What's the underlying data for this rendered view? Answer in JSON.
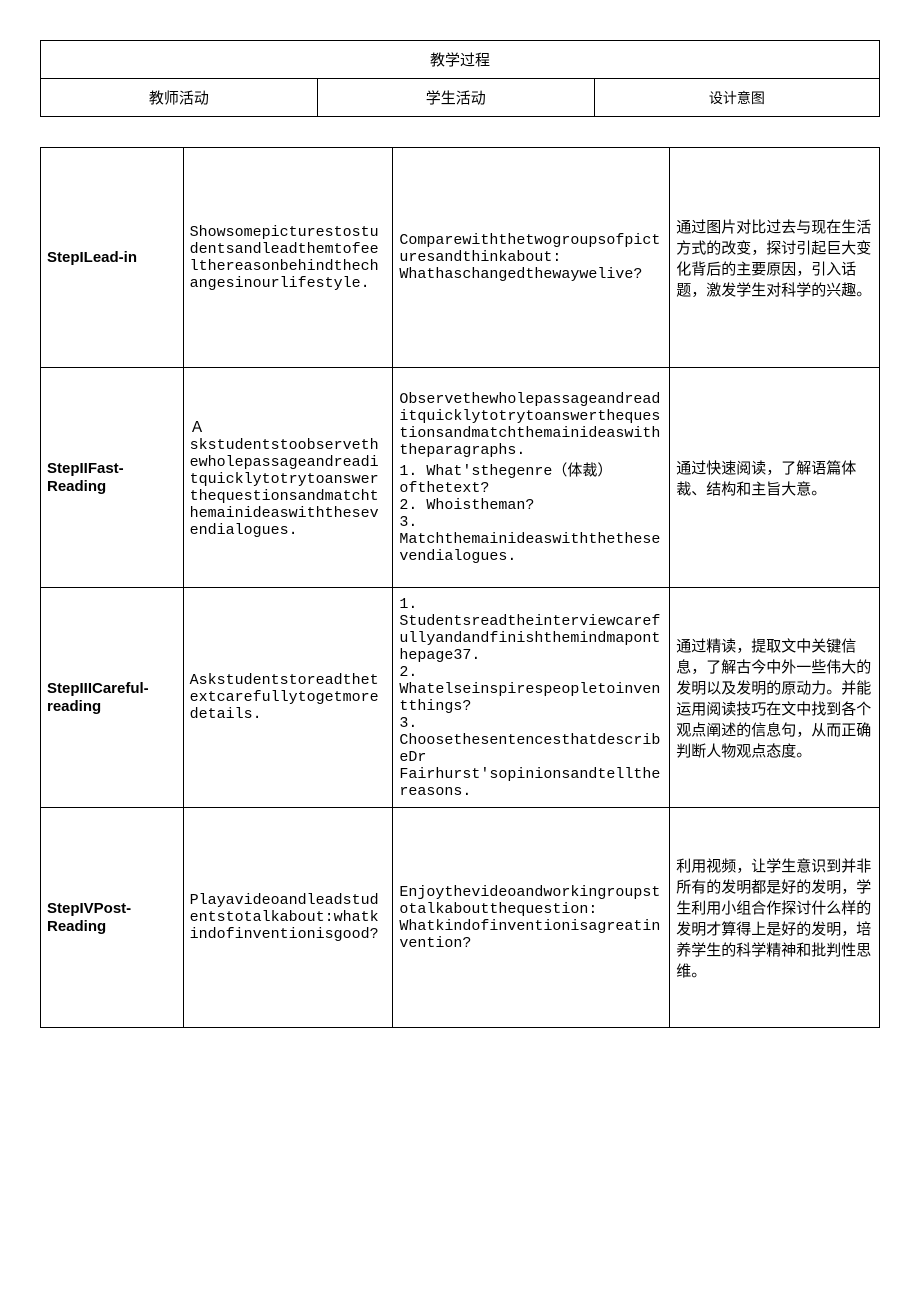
{
  "header": {
    "title": "教学过程",
    "col1": "教师活动",
    "col2": "学生活动",
    "col3": "设计意图"
  },
  "rows": [
    {
      "step": "StepILead-in",
      "teacher": "Showsomepicturestostudentsandleadthemtofeelthereasonbehindthechangesinourlifestyle.",
      "student": "Comparewiththetwogroupsofpicturesandthinkabout:\n Whathaschangedthewaywelive?",
      "intent": "通过图片对比过去与现在生活方式的改变，探讨引起巨大变化背后的主要原因，引入话题，激发学生对科学的兴趣。"
    },
    {
      "step": "StepIIFast-Reading",
      "teacher": "Ａskstudentstoobservethewholepassageandreaditquicklytotrytoanswerthequestionsandmatchthemainideaswiththesevendialogues.",
      "student": "Observethewholepassageandreaditquicklytotrytoanswerthequestionsandmatchthemainideaswiththeparagraphs.\n1. What'sthegenre（体裁）ofthetext?\n2. Whoistheman?\n3. Matchthemainideaswiththethesevendialogues.",
      "intent": "通过快速阅读，了解语篇体裁、结构和主旨大意。"
    },
    {
      "step": "StepIIICareful-reading",
      "teacher": "Askstudentstoreadthetextcarefullytogetmoredetails.",
      "student": "1. Studentsreadtheinterviewcarefullyandandfinishthemindmaponthepage37.\n2. Whatelseinspirespeopletoinventthings?\n3. ChoosethesentencesthatdescribeDr Fairhurst'sopinionsandtellthereasons.",
      "intent": "通过精读，提取文中关键信息，了解古今中外一些伟大的发明以及发明的原动力。并能运用阅读技巧在文中找到各个观点阐述的信息句，从而正确判断人物观点态度。"
    },
    {
      "step": "StepIVPost-Reading",
      "teacher": "Playavideoandleadstudentstotalkabout:whatkindofinventionisgood?",
      "student": "Enjoythevideoandworkingroupstotalkaboutthequestion:\nWhatkindofinventionisagreatinvention?",
      "intent": "利用视频，让学生意识到并非所有的发明都是好的发明，学生利用小组合作探讨什么样的发明才算得上是好的发明，培养学生的科学精神和批判性思维。"
    }
  ],
  "style": {
    "border_color": "#000000",
    "background_color": "#ffffff",
    "step_font_family": "Arial",
    "step_font_weight": "bold",
    "body_font_family": "SimSun",
    "mono_font_family": "Courier New",
    "cell_font_size": 15
  }
}
